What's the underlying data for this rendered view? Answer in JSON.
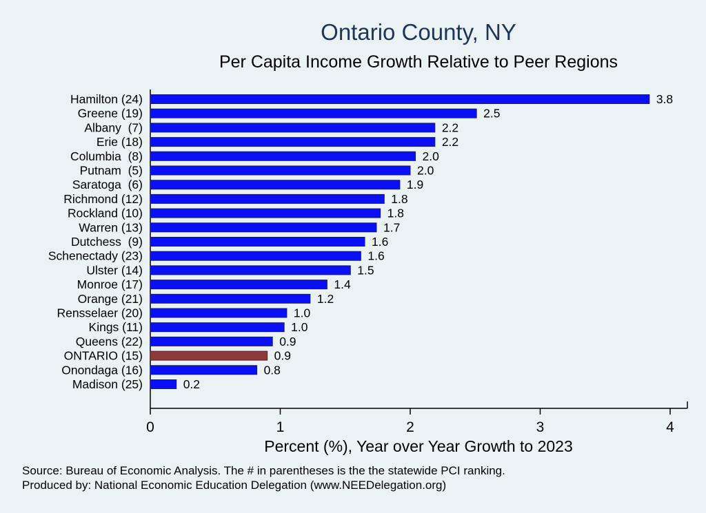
{
  "chart_data": {
    "type": "bar",
    "orientation": "horizontal",
    "title": "Ontario County, NY",
    "subtitle": "Per Capita Income Growth Relative to Peer Regions",
    "xlabel": "Percent (%), Year over Year Growth to 2023",
    "ylabel": "",
    "xlim": [
      0,
      4.15
    ],
    "xticks": [
      0,
      1,
      2,
      3,
      4
    ],
    "grid": false,
    "categories": [
      "Hamilton (24)",
      "Greene (19)",
      "Albany  (7)",
      "Erie (18)",
      "Columbia  (8)",
      "Putnam  (5)",
      "Saratoga  (6)",
      "Richmond (12)",
      "Rockland (10)",
      "Warren (13)",
      "Dutchess  (9)",
      "Schenectady (23)",
      "Ulster (14)",
      "Monroe (17)",
      "Orange (21)",
      "Rensselaer (20)",
      "Kings (11)",
      "Queens (22)",
      "ONTARIO (15)",
      "Onondaga (16)",
      "Madison (25)"
    ],
    "values": [
      3.84,
      2.51,
      2.19,
      2.19,
      2.04,
      2.0,
      1.92,
      1.8,
      1.77,
      1.74,
      1.65,
      1.62,
      1.54,
      1.36,
      1.23,
      1.05,
      1.03,
      0.94,
      0.9,
      0.82,
      0.2
    ],
    "value_labels": [
      "3.8",
      "2.5",
      "2.2",
      "2.2",
      "2.0",
      "2.0",
      "1.9",
      "1.8",
      "1.8",
      "1.7",
      "1.6",
      "1.6",
      "1.5",
      "1.4",
      "1.2",
      "1.0",
      "1.0",
      "0.9",
      "0.9",
      "0.8",
      "0.2"
    ],
    "highlight_category": "ONTARIO (15)",
    "colors": {
      "bar": "#0a10f5",
      "highlight": "#8f3a3a",
      "outline": "#1a1a6e",
      "background": "#eaf2f3",
      "title": "#1f3558"
    }
  },
  "footer": {
    "source": "Source: Bureau of Economic Analysis. The # in parentheses is the the statewide PCI ranking.",
    "produced_by": "Produced by: National Economic Education Delegation (www.NEEDelegation.org)"
  }
}
